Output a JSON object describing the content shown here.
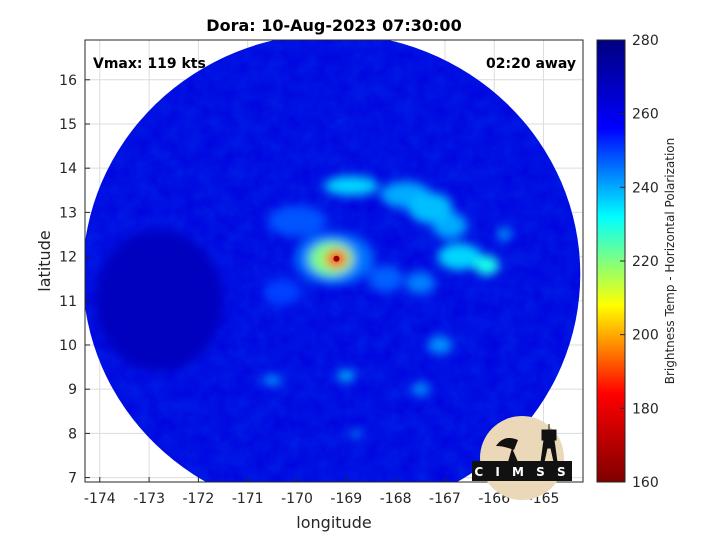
{
  "chart_data": {
    "type": "heatmap",
    "title": "Dora: 10-Aug-2023 07:30:00",
    "xlabel": "longitude",
    "ylabel": "latitude",
    "xlim": [
      -174.3,
      -164.2
    ],
    "ylim": [
      6.9,
      16.9
    ],
    "x_ticks": [
      -174,
      -173,
      -172,
      -171,
      -170,
      -169,
      -168,
      -167,
      -166,
      -165
    ],
    "y_ticks": [
      7,
      8,
      9,
      10,
      11,
      12,
      13,
      14,
      15,
      16
    ],
    "grid": true,
    "colorbar": {
      "label": "Brightness Temp - Horizontal Polarization",
      "range": [
        160,
        280
      ],
      "ticks": [
        160,
        180,
        200,
        220,
        240,
        260,
        280
      ],
      "colormap": [
        "#7f0000",
        "#ff0000",
        "#ffff00",
        "#00ffff",
        "#0000ff",
        "#00007f"
      ]
    },
    "annotations": {
      "vmax": "Vmax: 119 kts",
      "time_away": "02:20 away"
    },
    "storm_center": {
      "lon": -169.2,
      "lat": 11.95
    },
    "scan_center": {
      "lon": -169.3,
      "lat": 11.6,
      "radius_deg": 5.7
    },
    "background_tb": 262,
    "features": [
      {
        "lon": -169.2,
        "lat": 11.95,
        "rx": 0.22,
        "ry": 0.2,
        "tb": 190
      },
      {
        "lon": -169.3,
        "lat": 11.95,
        "rx": 0.45,
        "ry": 0.38,
        "tb": 220
      },
      {
        "lon": -169.25,
        "lat": 11.95,
        "rx": 0.8,
        "ry": 0.6,
        "tb": 245
      },
      {
        "lon": -168.9,
        "lat": 13.6,
        "rx": 0.55,
        "ry": 0.22,
        "tb": 236
      },
      {
        "lon": -167.8,
        "lat": 13.4,
        "rx": 0.5,
        "ry": 0.3,
        "tb": 240
      },
      {
        "lon": -167.3,
        "lat": 13.1,
        "rx": 0.45,
        "ry": 0.35,
        "tb": 238
      },
      {
        "lon": -166.9,
        "lat": 12.7,
        "rx": 0.35,
        "ry": 0.3,
        "tb": 240
      },
      {
        "lon": -166.7,
        "lat": 12.0,
        "rx": 0.45,
        "ry": 0.3,
        "tb": 236
      },
      {
        "lon": -166.15,
        "lat": 11.8,
        "rx": 0.25,
        "ry": 0.22,
        "tb": 230
      },
      {
        "lon": -165.8,
        "lat": 12.5,
        "rx": 0.15,
        "ry": 0.12,
        "tb": 240
      },
      {
        "lon": -167.5,
        "lat": 11.4,
        "rx": 0.3,
        "ry": 0.25,
        "tb": 244
      },
      {
        "lon": -168.2,
        "lat": 11.5,
        "rx": 0.35,
        "ry": 0.3,
        "tb": 247
      },
      {
        "lon": -170.0,
        "lat": 12.8,
        "rx": 0.6,
        "ry": 0.35,
        "tb": 248
      },
      {
        "lon": -170.3,
        "lat": 11.2,
        "rx": 0.4,
        "ry": 0.3,
        "tb": 250
      },
      {
        "lon": -167.1,
        "lat": 10.0,
        "rx": 0.25,
        "ry": 0.2,
        "tb": 242
      },
      {
        "lon": -169.0,
        "lat": 9.3,
        "rx": 0.18,
        "ry": 0.12,
        "tb": 238
      },
      {
        "lon": -170.5,
        "lat": 9.2,
        "rx": 0.2,
        "ry": 0.12,
        "tb": 242
      },
      {
        "lon": -167.5,
        "lat": 9.0,
        "rx": 0.18,
        "ry": 0.14,
        "tb": 242
      },
      {
        "lon": -168.8,
        "lat": 8.0,
        "rx": 0.1,
        "ry": 0.1,
        "tb": 240
      },
      {
        "lon": -172.8,
        "lat": 11.0,
        "rx": 1.3,
        "ry": 1.6,
        "tb": 268
      }
    ]
  },
  "logo": {
    "text": "CIMSS"
  }
}
